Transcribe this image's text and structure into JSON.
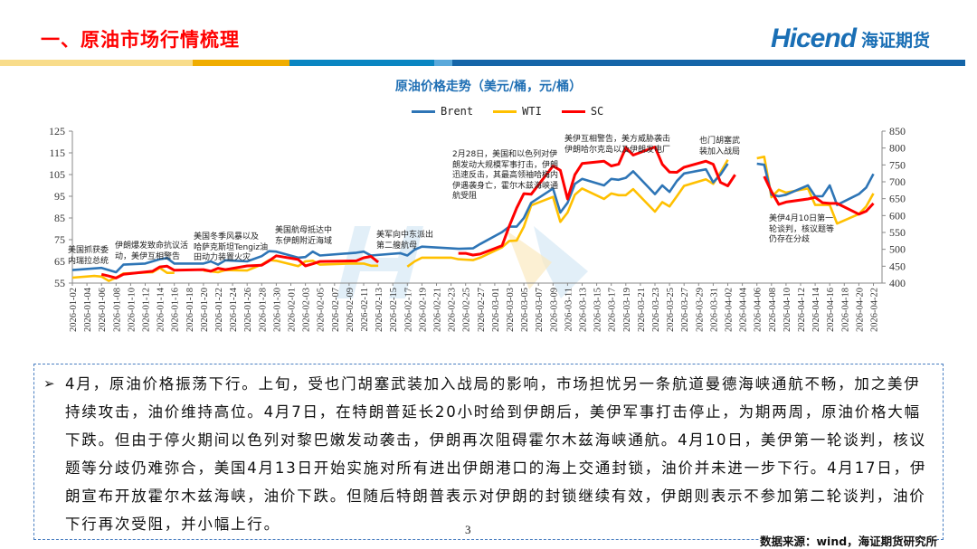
{
  "header": {
    "title": "一、原油市场行情梳理",
    "logo_en": "Hicend",
    "logo_cn": "海证期货",
    "bar_colors": [
      "#f8dc8a",
      "#f0ad00",
      "#0a86c2",
      "#5aa9db",
      "#1565a8"
    ]
  },
  "chart_data": {
    "type": "line",
    "title": "原油价格走势（美元/桶，元/桶）",
    "legend": [
      "Brent",
      "WTI",
      "SC"
    ],
    "legend_position": "top-center",
    "colors": {
      "Brent": "#2e75b6",
      "WTI": "#ffc000",
      "SC": "#ff0000"
    },
    "y_left": {
      "range": [
        55,
        125
      ],
      "ticks": [
        55,
        65,
        75,
        85,
        95,
        105,
        115,
        125
      ]
    },
    "y_right": {
      "range": [
        400,
        850
      ],
      "ticks": [
        400,
        450,
        500,
        550,
        600,
        650,
        700,
        750,
        800,
        850
      ]
    },
    "x_ticks": [
      "2026-01-02",
      "2026-01-04",
      "2026-01-06",
      "2026-01-08",
      "2026-01-10",
      "2026-01-12",
      "2026-01-14",
      "2026-01-16",
      "2026-01-18",
      "2026-01-20",
      "2026-01-22",
      "2026-01-24",
      "2026-01-26",
      "2026-01-28",
      "2026-01-30",
      "2026-02-01",
      "2026-02-03",
      "2026-02-05",
      "2026-02-07",
      "2026-02-09",
      "2026-02-11",
      "2026-02-13",
      "2026-02-15",
      "2026-02-17",
      "2026-02-19",
      "2026-02-21",
      "2026-02-23",
      "2026-02-25",
      "2026-02-27",
      "2026-03-01",
      "2026-03-03",
      "2026-03-05",
      "2026-03-07",
      "2026-03-09",
      "2026-03-11",
      "2026-03-13",
      "2026-03-15",
      "2026-03-17",
      "2026-03-19",
      "2026-03-21",
      "2026-03-23",
      "2026-03-25",
      "2026-03-27",
      "2026-03-29",
      "2026-03-31",
      "2026-04-02",
      "2026-04-04",
      "2026-04-06",
      "2026-04-08",
      "2026-04-10",
      "2026-04-12",
      "2026-04-14",
      "2026-04-16",
      "2026-04-18",
      "2026-04-20",
      "2026-04-22"
    ],
    "series": [
      {
        "name": "Brent",
        "axis": "left",
        "segments": [
          [
            [
              "01-02",
              61
            ],
            [
              "01-06",
              62
            ],
            [
              "01-08",
              60
            ],
            [
              "01-09",
              63.5
            ],
            [
              "01-12",
              64
            ],
            [
              "01-14",
              66
            ],
            [
              "01-15",
              66.5
            ],
            [
              "01-16",
              64
            ],
            [
              "01-20",
              64
            ],
            [
              "01-21",
              65
            ],
            [
              "01-22",
              63.5
            ],
            [
              "01-23",
              65.5
            ],
            [
              "01-26",
              65
            ],
            [
              "01-28",
              67.4
            ],
            [
              "01-29",
              69.7
            ],
            [
              "01-30",
              69.5
            ],
            [
              "02-02",
              66.7
            ],
            [
              "02-03",
              67
            ],
            [
              "02-04",
              69.5
            ],
            [
              "02-05",
              67.7
            ],
            [
              "02-10",
              69
            ],
            [
              "02-11",
              69.5
            ],
            [
              "02-12",
              67.7
            ],
            [
              "02-16",
              68.8
            ],
            [
              "02-17",
              67.7
            ],
            [
              "02-18",
              70.4
            ],
            [
              "02-19",
              71.8
            ],
            [
              "02-23",
              71
            ],
            [
              "02-24",
              70.8
            ],
            [
              "02-26",
              71
            ],
            [
              "02-27",
              73
            ],
            [
              "03-02",
              78.5
            ],
            [
              "03-03",
              81
            ],
            [
              "03-04",
              81
            ],
            [
              "03-05",
              85
            ],
            [
              "03-06",
              92
            ],
            [
              "03-09",
              98.6
            ],
            [
              "03-10",
              87.5
            ],
            [
              "03-11",
              92
            ],
            [
              "03-12",
              100.7
            ],
            [
              "03-13",
              103
            ],
            [
              "03-16",
              100
            ],
            [
              "03-17",
              103
            ],
            [
              "03-18",
              102.6
            ],
            [
              "03-19",
              103.5
            ],
            [
              "03-20",
              106.5
            ],
            [
              "03-23",
              96
            ],
            [
              "03-24",
              100
            ],
            [
              "03-25",
              97
            ],
            [
              "03-26",
              102
            ],
            [
              "03-27",
              105.5
            ],
            [
              "03-30",
              107.4
            ],
            [
              "03-31",
              101.4
            ],
            [
              "04-01",
              105
            ],
            [
              "04-02",
              110
            ]
          ],
          [
            [
              "04-06",
              110
            ],
            [
              "04-07",
              109.5
            ],
            [
              "04-08",
              95.7
            ],
            [
              "04-09",
              95
            ],
            [
              "04-10",
              95.7
            ],
            [
              "04-13",
              100
            ],
            [
              "04-14",
              95
            ],
            [
              "04-15",
              95
            ],
            [
              "04-16",
              100
            ],
            [
              "04-17",
              91
            ],
            [
              "04-20",
              96
            ],
            [
              "04-21",
              99
            ],
            [
              "04-22",
              105.3
            ]
          ]
        ]
      },
      {
        "name": "WTI",
        "axis": "left",
        "segments": [
          [
            [
              "01-02",
              57.5
            ],
            [
              "01-05",
              58.3
            ],
            [
              "01-06",
              58
            ],
            [
              "01-07",
              56
            ],
            [
              "01-08",
              57.5
            ],
            [
              "01-09",
              59.4
            ],
            [
              "01-13",
              60
            ],
            [
              "01-14",
              62
            ],
            [
              "01-15",
              59.7
            ],
            [
              "01-16",
              59.7
            ]
          ],
          [
            [
              "01-20",
              60.8
            ],
            [
              "01-22",
              60
            ],
            [
              "01-23",
              61
            ],
            [
              "01-26",
              60.8
            ],
            [
              "01-28",
              63.5
            ],
            [
              "01-29",
              65.6
            ],
            [
              "01-30",
              65.3
            ],
            [
              "02-02",
              62.8
            ],
            [
              "02-03",
              65
            ],
            [
              "02-04",
              65.3
            ],
            [
              "02-05",
              63.5
            ],
            [
              "02-09",
              64
            ],
            [
              "02-11",
              64
            ],
            [
              "02-12",
              63
            ],
            [
              "02-13",
              63
            ]
          ],
          [
            [
              "02-17",
              62.6
            ],
            [
              "02-18",
              65
            ],
            [
              "02-19",
              66.7
            ],
            [
              "02-23",
              66.7
            ],
            [
              "02-24",
              66
            ],
            [
              "02-26",
              65.6
            ],
            [
              "02-27",
              66.7
            ],
            [
              "03-02",
              71.5
            ],
            [
              "03-03",
              74.4
            ],
            [
              "03-04",
              74.6
            ],
            [
              "03-05",
              81
            ],
            [
              "03-06",
              90.8
            ],
            [
              "03-09",
              94.7
            ],
            [
              "03-10",
              83.2
            ],
            [
              "03-11",
              87.5
            ],
            [
              "03-12",
              95.7
            ],
            [
              "03-13",
              98.6
            ],
            [
              "03-16",
              93.8
            ],
            [
              "03-17",
              96.3
            ],
            [
              "03-18",
              95.5
            ],
            [
              "03-19",
              95.5
            ],
            [
              "03-20",
              98.3
            ],
            [
              "03-23",
              87.9
            ],
            [
              "03-24",
              92.3
            ],
            [
              "03-25",
              90.3
            ],
            [
              "03-26",
              95
            ],
            [
              "03-27",
              99.8
            ],
            [
              "03-30",
              102.8
            ],
            [
              "03-31",
              100.7
            ],
            [
              "04-01",
              106
            ],
            [
              "04-02",
              111.8
            ]
          ],
          [
            [
              "04-06",
              112.5
            ],
            [
              "04-07",
              113.2
            ],
            [
              "04-08",
              94.6
            ],
            [
              "04-09",
              98
            ],
            [
              "04-10",
              96.7
            ],
            [
              "04-13",
              98.6
            ],
            [
              "04-14",
              91
            ],
            [
              "04-15",
              91
            ],
            [
              "04-16",
              91
            ],
            [
              "04-17",
              82.4
            ],
            [
              "04-20",
              86.8
            ],
            [
              "04-21",
              90.3
            ],
            [
              "04-22",
              96.3
            ]
          ]
        ]
      },
      {
        "name": "SC",
        "axis": "right",
        "segments": [
          [
            [
              "01-06",
              426
            ],
            [
              "01-07",
              421
            ],
            [
              "01-08",
              415
            ],
            [
              "01-09",
              426
            ],
            [
              "01-13",
              435
            ],
            [
              "01-14",
              448
            ],
            [
              "01-15",
              450
            ],
            [
              "01-16",
              438
            ],
            [
              "01-20",
              440
            ],
            [
              "01-21",
              435
            ],
            [
              "01-22",
              444
            ],
            [
              "01-23",
              440
            ],
            [
              "01-26",
              451
            ],
            [
              "01-28",
              453
            ],
            [
              "01-29",
              466
            ],
            [
              "01-30",
              481
            ],
            [
              "02-02",
              470
            ],
            [
              "02-03",
              451
            ],
            [
              "02-04",
              457
            ],
            [
              "02-05",
              464
            ],
            [
              "02-10",
              466
            ],
            [
              "02-11",
              475
            ],
            [
              "02-12",
              479
            ],
            [
              "02-13",
              462
            ]
          ],
          [
            [
              "02-24",
              488
            ],
            [
              "02-25",
              488
            ],
            [
              "02-26",
              483
            ],
            [
              "02-27",
              486
            ],
            [
              "03-02",
              511
            ],
            [
              "03-03",
              569
            ],
            [
              "03-04",
              622
            ],
            [
              "03-05",
              665
            ],
            [
              "03-06",
              663
            ],
            [
              "03-09",
              747
            ],
            [
              "03-10",
              734
            ],
            [
              "03-11",
              649
            ],
            [
              "03-12",
              721
            ],
            [
              "03-13",
              754
            ],
            [
              "03-16",
              761
            ],
            [
              "03-17",
              747
            ],
            [
              "03-18",
              752
            ],
            [
              "03-19",
              801
            ],
            [
              "03-20",
              779
            ],
            [
              "03-23",
              803
            ],
            [
              "03-24",
              752
            ],
            [
              "03-25",
              729
            ],
            [
              "03-26",
              728
            ],
            [
              "03-27",
              743
            ],
            [
              "03-30",
              761
            ],
            [
              "03-31",
              752
            ],
            [
              "04-01",
              698
            ],
            [
              "04-02",
              688
            ],
            [
              "04-03",
              721
            ]
          ],
          [
            [
              "04-07",
              716
            ],
            [
              "04-08",
              671
            ],
            [
              "04-09",
              633
            ],
            [
              "04-10",
              640
            ],
            [
              "04-13",
              649
            ],
            [
              "04-14",
              654
            ],
            [
              "04-15",
              638
            ],
            [
              "04-16",
              636
            ],
            [
              "04-17",
              636
            ],
            [
              "04-20",
              604
            ],
            [
              "04-21",
              613
            ],
            [
              "04-22",
              636
            ]
          ]
        ]
      }
    ],
    "annotations": [
      {
        "lines": [
          "美国抓获委",
          "内瑞拉总统"
        ]
      },
      {
        "lines": [
          "伊朗爆发致命抗议活",
          "动，美伊互相警告"
        ]
      },
      {
        "lines": [
          "美国冬季风暴以及",
          "哈萨克斯坦Tengiz油",
          "田动力装置火灾"
        ]
      },
      {
        "lines": [
          "美国航母抵达中",
          "东伊朗附近海域"
        ]
      },
      {
        "lines": [
          "美军向中东派出",
          "第二艘航母"
        ]
      },
      {
        "lines": [
          "2月28日，美国和以色列对伊",
          "朗发动大规模军事打击，伊朗",
          "迅速反击，其最高领袖哈梅内",
          "伊遇袭身亡，霍尔木兹海峡通",
          "航受阻"
        ]
      },
      {
        "lines": [
          "美伊互相警告，美方威胁袭击",
          "伊朗哈尔克岛以及伊朗发电厂"
        ]
      },
      {
        "lines": [
          "也门胡塞武",
          "装加入战局"
        ]
      },
      {
        "lines": [
          "美伊4月10日第一",
          "轮谈判，核议题等",
          "仍存在分歧"
        ]
      }
    ]
  },
  "summary": {
    "bullet": "➢",
    "text": "4月，原油价格振荡下行。上旬，受也门胡塞武装加入战局的影响，市场担忧另一条航道曼德海峡通航不畅，加之美伊持续攻击，油价维持高位。4月7日，在特朗普延长20小时给到伊朗后，美伊军事打击停止，为期两周，原油价格大幅下跌。但由于停火期间以色列对黎巴嫩发动袭击，伊朗再次阻碍霍尔木兹海峡通航。4月10日，美伊第一轮谈判，核议题等分歧仍难弥合，美国4月13日开始实施对所有进出伊朗港口的海上交通封锁，油价并未进一步下行。4月17日，伊朗宣布开放霍尔木兹海峡，油价下跌。但随后特朗普表示对伊朗的封锁继续有效，伊朗则表示不参加第二轮谈判，油价下行再次受阻，并小幅上行。"
  },
  "footer": {
    "page": "3",
    "source": "数据来源：wind，海证期货研究所"
  }
}
